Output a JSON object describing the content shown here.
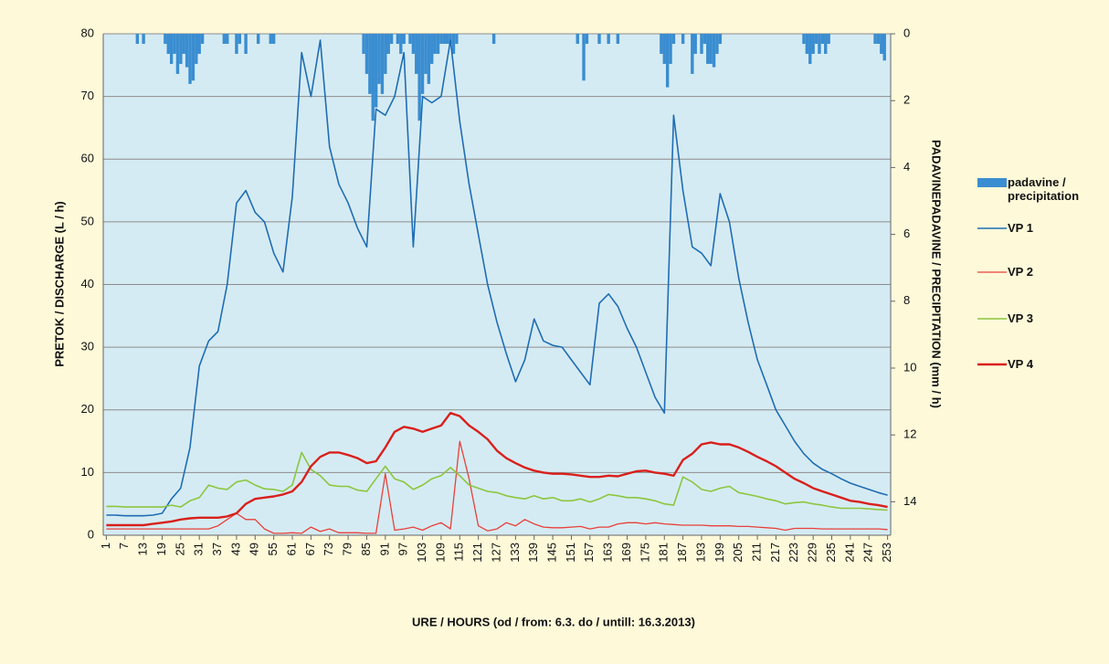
{
  "chart_data": {
    "type": "line",
    "x_label": "URE / HOURS  (od / from: 6.3.  do / untill: 16.3.2013)",
    "y_label": "PRETOK / DISCHARGE   (L / h)",
    "y2_label": "PADAVINEPADAVINE / PRECIPITATION   (mm / h)",
    "xlim": [
      0,
      254
    ],
    "xticks": [
      1,
      7,
      13,
      19,
      25,
      31,
      37,
      43,
      49,
      55,
      61,
      67,
      73,
      79,
      85,
      91,
      97,
      103,
      109,
      115,
      121,
      127,
      133,
      139,
      145,
      151,
      157,
      163,
      169,
      175,
      181,
      187,
      193,
      199,
      205,
      211,
      217,
      223,
      229,
      235,
      241,
      247,
      253
    ],
    "ylim": [
      0,
      80
    ],
    "yticks": [
      0,
      10,
      20,
      30,
      40,
      50,
      60,
      70,
      80
    ],
    "y2lim": [
      0,
      15
    ],
    "y2ticks": [
      0,
      2,
      4,
      6,
      8,
      10,
      12,
      14
    ],
    "y2_inverted": true,
    "grid": true,
    "legend": "right",
    "x": [
      1,
      4,
      7,
      10,
      13,
      16,
      19,
      22,
      25,
      28,
      31,
      34,
      37,
      40,
      43,
      46,
      49,
      52,
      55,
      58,
      61,
      64,
      67,
      70,
      73,
      76,
      79,
      82,
      85,
      88,
      91,
      94,
      97,
      100,
      103,
      106,
      109,
      112,
      115,
      118,
      121,
      124,
      127,
      130,
      133,
      136,
      139,
      142,
      145,
      148,
      151,
      154,
      157,
      160,
      163,
      166,
      169,
      172,
      175,
      178,
      181,
      184,
      187,
      190,
      193,
      196,
      199,
      202,
      205,
      208,
      211,
      214,
      217,
      220,
      223,
      226,
      229,
      232,
      235,
      238,
      241,
      244,
      247,
      250,
      253
    ],
    "series": [
      {
        "name": "padavine / precipitation",
        "type": "bar",
        "axis": "y2",
        "color": "#3a8dd0",
        "x": [
          11,
          13,
          20,
          21,
          22,
          23,
          24,
          25,
          26,
          27,
          28,
          29,
          30,
          31,
          32,
          39,
          40,
          43,
          44,
          46,
          50,
          54,
          55,
          84,
          85,
          86,
          87,
          88,
          89,
          90,
          91,
          92,
          93,
          95,
          96,
          97,
          99,
          100,
          101,
          102,
          103,
          104,
          105,
          106,
          107,
          108,
          109,
          110,
          111,
          112,
          113,
          114,
          126,
          153,
          155,
          156,
          160,
          163,
          166,
          180,
          181,
          182,
          183,
          184,
          187,
          190,
          191,
          193,
          194,
          195,
          196,
          197,
          198,
          199,
          226,
          227,
          228,
          229,
          230,
          231,
          232,
          233,
          234,
          249,
          250,
          251,
          252
        ],
        "values": [
          0.3,
          0.3,
          0.3,
          0.6,
          0.9,
          0.6,
          1.2,
          0.9,
          0.6,
          1.0,
          1.5,
          1.4,
          0.9,
          0.6,
          0.3,
          0.3,
          0.3,
          0.6,
          0.3,
          0.6,
          0.3,
          0.3,
          0.3,
          0.6,
          1.2,
          1.8,
          2.6,
          2.2,
          1.5,
          1.8,
          1.2,
          0.6,
          0.3,
          0.3,
          0.6,
          0.3,
          0.3,
          0.6,
          1.2,
          2.6,
          1.8,
          1.2,
          1.5,
          0.9,
          0.6,
          0.6,
          0.3,
          0.3,
          0.3,
          0.3,
          0.6,
          0.3,
          0.3,
          0.3,
          1.4,
          0.3,
          0.3,
          0.3,
          0.3,
          0.6,
          0.9,
          1.6,
          0.9,
          0.3,
          0.3,
          1.2,
          0.6,
          0.6,
          0.3,
          0.9,
          0.9,
          1.0,
          0.6,
          0.3,
          0.3,
          0.6,
          0.9,
          0.6,
          0.3,
          0.6,
          0.3,
          0.6,
          0.3,
          0.3,
          0.3,
          0.6,
          0.8
        ]
      },
      {
        "name": "VP 1",
        "type": "line",
        "color": "#1f6db4",
        "line_width": 1.6,
        "values": [
          3.2,
          3.2,
          3.1,
          3.1,
          3.1,
          3.2,
          3.5,
          5.8,
          7.5,
          14,
          27,
          31,
          32.5,
          40,
          53,
          55,
          51.5,
          50,
          45,
          42,
          54,
          77,
          70,
          79,
          62,
          56,
          53,
          49,
          46,
          68,
          67,
          70,
          77,
          46,
          70,
          69,
          70,
          79,
          66,
          56,
          48,
          40,
          34,
          29,
          24.5,
          28,
          34.5,
          31,
          30.3,
          30,
          28,
          26,
          24,
          37,
          38.5,
          36.5,
          33,
          30,
          26,
          22,
          19.5,
          67,
          55,
          46,
          45,
          43,
          54.5,
          50,
          41,
          34,
          28,
          24,
          20,
          17.5,
          15,
          13,
          11.5,
          10.5,
          9.8,
          9,
          8.3,
          7.8,
          7.3,
          6.8,
          6.4
        ]
      },
      {
        "name": "VP 2",
        "type": "line",
        "color": "#e8403a",
        "line_width": 1.3,
        "values": [
          1,
          1,
          1,
          1,
          1,
          1,
          1,
          1,
          1,
          1,
          1,
          1,
          1.5,
          2.5,
          3.5,
          2.5,
          2.5,
          1,
          0.3,
          0.3,
          0.4,
          0.3,
          1.3,
          0.6,
          1,
          0.4,
          0.4,
          0.4,
          0.3,
          0.3,
          9.8,
          0.8,
          1,
          1.3,
          0.8,
          1.5,
          2,
          1,
          15,
          9,
          1.5,
          0.7,
          1,
          2,
          1.5,
          2.5,
          1.8,
          1.3,
          1.2,
          1.2,
          1.3,
          1.4,
          1,
          1.3,
          1.3,
          1.8,
          2,
          2,
          1.8,
          2,
          1.8,
          1.7,
          1.6,
          1.6,
          1.6,
          1.5,
          1.5,
          1.5,
          1.4,
          1.4,
          1.3,
          1.2,
          1.1,
          0.8,
          1.1,
          1.1,
          1.1,
          1,
          1,
          1,
          1,
          1,
          1,
          1,
          0.9
        ]
      },
      {
        "name": "VP 3",
        "type": "line",
        "color": "#8cc63e",
        "line_width": 1.6,
        "values": [
          4.6,
          4.6,
          4.5,
          4.5,
          4.5,
          4.5,
          4.5,
          4.8,
          4.5,
          5.5,
          6,
          8,
          7.5,
          7.3,
          8.5,
          8.8,
          8,
          7.4,
          7.3,
          7,
          8,
          13.2,
          10.5,
          9.5,
          8,
          7.8,
          7.8,
          7.2,
          7,
          9,
          11,
          9,
          8.5,
          7.3,
          8,
          9,
          9.5,
          10.8,
          9.5,
          8,
          7.5,
          7,
          6.8,
          6.3,
          6,
          5.8,
          6.3,
          5.8,
          6,
          5.5,
          5.5,
          5.8,
          5.3,
          5.8,
          6.5,
          6.3,
          6,
          6,
          5.8,
          5.5,
          5,
          4.8,
          9.3,
          8.5,
          7.3,
          7,
          7.5,
          7.8,
          6.8,
          6.5,
          6.2,
          5.8,
          5.5,
          5,
          5.2,
          5.3,
          5,
          4.8,
          4.5,
          4.3,
          4.3,
          4.3,
          4.2,
          4.1,
          4
        ]
      },
      {
        "name": "VP 4",
        "type": "line",
        "color": "#d9201c",
        "line_width": 2.4,
        "values": [
          1.6,
          1.6,
          1.6,
          1.6,
          1.6,
          1.8,
          2,
          2.2,
          2.5,
          2.7,
          2.8,
          2.8,
          2.8,
          3,
          3.5,
          5,
          5.8,
          6,
          6.2,
          6.5,
          7,
          8.5,
          11,
          12.5,
          13.2,
          13.2,
          12.8,
          12.3,
          11.5,
          11.8,
          14,
          16.5,
          17.3,
          17,
          16.5,
          17,
          17.5,
          19.5,
          19,
          17.5,
          16.5,
          15.3,
          13.5,
          12.3,
          11.5,
          10.8,
          10.3,
          10,
          9.8,
          9.8,
          9.7,
          9.5,
          9.3,
          9.3,
          9.5,
          9.4,
          9.8,
          10.2,
          10.3,
          10,
          9.8,
          9.5,
          12,
          13,
          14.5,
          14.8,
          14.5,
          14.5,
          14,
          13.3,
          12.5,
          11.8,
          11,
          10,
          9,
          8.3,
          7.5,
          7,
          6.5,
          6,
          5.5,
          5.3,
          5,
          4.8,
          4.5
        ]
      }
    ]
  }
}
